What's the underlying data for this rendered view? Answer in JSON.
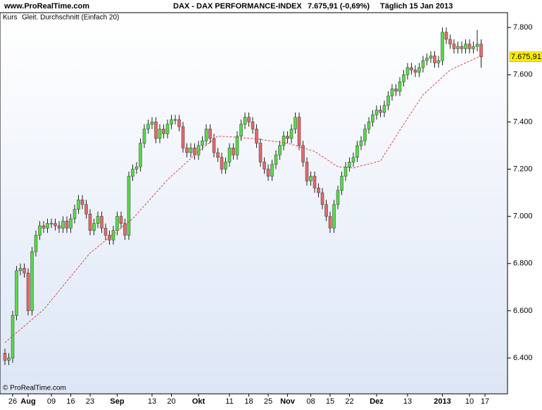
{
  "chart_data": {
    "type": "candlestick",
    "site": "www.ProRealTime.com",
    "title": "DAX - DAX PERFORMANCE-INDEX",
    "subtitle": "7.675,91 (-0,69%)",
    "period": "Täglich  15 Jan 2013",
    "copyright": "© ProRealTime.com",
    "last_price": {
      "value": 7675.91,
      "label": "7.675,91"
    },
    "up_color": "#55dd44",
    "down_color": "#e86868",
    "last_price_color": "#ffee00",
    "ylim": [
      6248,
      7863
    ],
    "yticks": [
      {
        "value": 6400,
        "label": "6.400"
      },
      {
        "value": 6600,
        "label": "6.600"
      },
      {
        "value": 6800,
        "label": "6.800"
      },
      {
        "value": 7000,
        "label": "7.000"
      },
      {
        "value": 7200,
        "label": "7.200"
      },
      {
        "value": 7400,
        "label": "7.400"
      },
      {
        "value": 7600,
        "label": "7.600"
      },
      {
        "value": 7800,
        "label": "7.800"
      }
    ],
    "grid": false,
    "categories": [
      null,
      null,
      "26",
      null,
      null,
      null,
      "Aug",
      null,
      null,
      null,
      null,
      null,
      "09",
      null,
      null,
      null,
      null,
      "16",
      null,
      null,
      null,
      null,
      "23",
      null,
      null,
      null,
      null,
      null,
      null,
      "Sep",
      null,
      null,
      null,
      null,
      null,
      null,
      null,
      null,
      "13",
      null,
      null,
      null,
      null,
      "20",
      null,
      null,
      null,
      null,
      null,
      null,
      "Okt",
      null,
      null,
      null,
      null,
      null,
      null,
      null,
      "11",
      null,
      null,
      null,
      null,
      "18",
      null,
      null,
      null,
      null,
      "25",
      null,
      null,
      null,
      null,
      "Nov",
      null,
      null,
      null,
      null,
      null,
      "08",
      null,
      null,
      null,
      null,
      "15",
      null,
      null,
      null,
      null,
      "22",
      null,
      null,
      null,
      null,
      null,
      null,
      "Dez",
      null,
      null,
      null,
      null,
      null,
      null,
      null,
      "13",
      null,
      null,
      null,
      null,
      null,
      null,
      null,
      null,
      "2013",
      null,
      null,
      null,
      null,
      null,
      null,
      "10",
      null,
      null,
      null,
      "17"
    ],
    "series": [
      {
        "name": "Kurs",
        "open": [
          6420,
          6390,
          6400,
          6580,
          6770,
          6780,
          6760,
          6600,
          6850,
          6920,
          6960,
          6950,
          6970,
          6970,
          6960,
          6950,
          6980,
          6950,
          6990,
          7030,
          7070,
          7050,
          7010,
          6940,
          6970,
          7000,
          6950,
          6920,
          6900,
          6940,
          7000,
          6970,
          6920,
          7170,
          7200,
          7210,
          7310,
          7370,
          7390,
          7400,
          7330,
          7370,
          7350,
          7390,
          7410,
          7410,
          7380,
          7290,
          7270,
          7290,
          7260,
          7300,
          7320,
          7370,
          7330,
          7270,
          7250,
          7200,
          7230,
          7290,
          7260,
          7340,
          7390,
          7420,
          7400,
          7370,
          7310,
          7230,
          7200,
          7170,
          7220,
          7260,
          7300,
          7340,
          7330,
          7370,
          7420,
          7300,
          7230,
          7150,
          7170,
          7120,
          7100,
          7050,
          7000,
          6950,
          7050,
          7110,
          7170,
          7210,
          7230,
          7250,
          7300,
          7320,
          7370,
          7400,
          7430,
          7450,
          7440,
          7470,
          7510,
          7540,
          7530,
          7570,
          7600,
          7630,
          7620,
          7610,
          7630,
          7660,
          7670,
          7680,
          7650,
          7660,
          7780,
          7750,
          7730,
          7710,
          7720,
          7710,
          7730,
          7710,
          7720,
          7730,
          null
        ],
        "high": [
          6440,
          6420,
          6600,
          6790,
          6800,
          6800,
          6780,
          6870,
          6940,
          6980,
          6980,
          6990,
          6990,
          6990,
          6980,
          7000,
          7000,
          7010,
          7050,
          7090,
          7090,
          7070,
          7030,
          6990,
          7020,
          7020,
          6970,
          6940,
          6960,
          7020,
          7020,
          6990,
          7190,
          7220,
          7230,
          7330,
          7390,
          7410,
          7420,
          7420,
          7390,
          7390,
          7410,
          7430,
          7430,
          7430,
          7400,
          7310,
          7310,
          7310,
          7320,
          7340,
          7390,
          7390,
          7350,
          7290,
          7270,
          7250,
          7310,
          7310,
          7360,
          7410,
          7440,
          7440,
          7420,
          7390,
          7330,
          7250,
          7220,
          7240,
          7280,
          7320,
          7360,
          7360,
          7390,
          7440,
          7440,
          7320,
          7250,
          7190,
          7190,
          7140,
          7120,
          7070,
          7020,
          7070,
          7130,
          7190,
          7230,
          7250,
          7270,
          7320,
          7340,
          7390,
          7420,
          7450,
          7470,
          7470,
          7490,
          7530,
          7560,
          7560,
          7590,
          7620,
          7650,
          7650,
          7640,
          7650,
          7680,
          7690,
          7700,
          7700,
          7680,
          7800,
          7800,
          7770,
          7750,
          7740,
          7740,
          7750,
          7750,
          7740,
          7790,
          7750,
          null
        ],
        "low": [
          6370,
          6370,
          6380,
          6560,
          6750,
          6740,
          6580,
          6580,
          6830,
          6900,
          6930,
          6930,
          6950,
          6940,
          6930,
          6930,
          6930,
          6930,
          6970,
          7010,
          7030,
          6990,
          6920,
          6920,
          6950,
          6930,
          6900,
          6880,
          6880,
          6920,
          6950,
          6900,
          6900,
          7150,
          7180,
          7190,
          7290,
          7350,
          7370,
          7310,
          7310,
          7330,
          7330,
          7370,
          7390,
          7360,
          7270,
          7250,
          7250,
          7240,
          7240,
          7280,
          7300,
          7310,
          7250,
          7230,
          7180,
          7180,
          7210,
          7240,
          7240,
          7320,
          7370,
          7380,
          7350,
          7290,
          7210,
          7180,
          7150,
          7150,
          7200,
          7240,
          7280,
          7310,
          7310,
          7350,
          7280,
          7210,
          7130,
          7130,
          7100,
          7080,
          7030,
          6980,
          6930,
          6930,
          7030,
          7090,
          7150,
          7190,
          7210,
          7230,
          7280,
          7300,
          7350,
          7380,
          7410,
          7420,
          7420,
          7450,
          7490,
          7510,
          7510,
          7550,
          7580,
          7600,
          7590,
          7590,
          7610,
          7640,
          7650,
          7630,
          7630,
          7640,
          7730,
          7710,
          7690,
          7690,
          7690,
          7690,
          7690,
          7690,
          7700,
          7630,
          null
        ],
        "close": [
          6390,
          6400,
          6580,
          6770,
          6780,
          6760,
          6600,
          6850,
          6920,
          6960,
          6950,
          6970,
          6970,
          6960,
          6950,
          6980,
          6950,
          6990,
          7030,
          7070,
          7050,
          7010,
          6940,
          6970,
          7000,
          6950,
          6920,
          6900,
          6940,
          7000,
          6970,
          6920,
          7170,
          7200,
          7210,
          7310,
          7370,
          7390,
          7400,
          7330,
          7370,
          7350,
          7390,
          7410,
          7410,
          7380,
          7290,
          7270,
          7290,
          7260,
          7300,
          7320,
          7370,
          7330,
          7270,
          7250,
          7200,
          7230,
          7290,
          7260,
          7340,
          7390,
          7420,
          7400,
          7370,
          7310,
          7230,
          7200,
          7170,
          7220,
          7260,
          7300,
          7340,
          7330,
          7370,
          7420,
          7300,
          7230,
          7150,
          7170,
          7120,
          7100,
          7050,
          7000,
          6950,
          7050,
          7110,
          7170,
          7210,
          7230,
          7250,
          7300,
          7320,
          7370,
          7400,
          7430,
          7450,
          7440,
          7470,
          7510,
          7540,
          7530,
          7570,
          7600,
          7630,
          7620,
          7610,
          7630,
          7660,
          7670,
          7680,
          7650,
          7660,
          7780,
          7750,
          7730,
          7710,
          7720,
          7710,
          7730,
          7710,
          7720,
          7730,
          7675.91,
          null
        ]
      },
      {
        "name": "Gleit. Durchschnitt (Einfach 20)",
        "type": "line",
        "color": "#d94a4a",
        "values": [
          6465,
          6479,
          6493,
          6507,
          6521,
          6535,
          6549,
          6563,
          6577,
          6591,
          6605,
          6625,
          6645,
          6665,
          6685,
          6705,
          6725,
          6745,
          6765,
          6785,
          6805,
          6825,
          6845,
          6858,
          6871,
          6885,
          6898,
          6911,
          6924,
          6937,
          6950,
          6964,
          6977,
          6990,
          7008,
          7027,
          7045,
          7063,
          7082,
          7100,
          7118,
          7137,
          7155,
          7170,
          7185,
          7200,
          7215,
          7230,
          7245,
          7260,
          7275,
          7288,
          7301,
          7314,
          7327,
          7340,
          7339,
          7338,
          7337,
          7336,
          7334,
          7333,
          7332,
          7331,
          7330,
          7328,
          7326,
          7323,
          7321,
          7319,
          7317,
          7314,
          7312,
          7310,
          7305,
          7300,
          7295,
          7290,
          7285,
          7280,
          7275,
          7264,
          7253,
          7243,
          7232,
          7221,
          7210,
          7209,
          7208,
          7206,
          7205,
          7209,
          7214,
          7218,
          7222,
          7226,
          7231,
          7235,
          7261,
          7287,
          7313,
          7339,
          7365,
          7390,
          7415,
          7440,
          7465,
          7490,
          7515,
          7530,
          7545,
          7560,
          7575,
          7590,
          7605,
          7620,
          7628,
          7635,
          7643,
          7650,
          7658,
          7665,
          7673,
          7680,
          null
        ]
      }
    ]
  }
}
